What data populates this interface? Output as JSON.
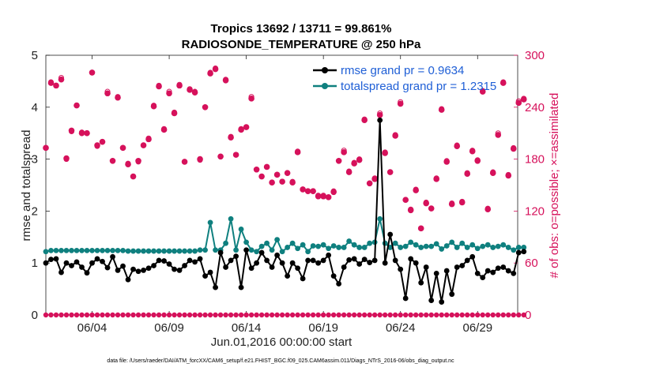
{
  "colors": {
    "rmse": "#000000",
    "spread": "#0f807f",
    "obs": "#d6115b",
    "legend_text": "#1f5fd6"
  },
  "chart_data": {
    "type": "line",
    "title_line1": "Tropics 13692 / 13711 = 99.861%",
    "title_line2": "RADIOSONDE_TEMPERATURE @ 250 hPa",
    "xlabel": "Jun.01,2016 00:00:00 start",
    "ylabel_left": "rmse and totalspread",
    "ylabel_right": "# of obs: o=possible; ×=assimilated",
    "xlim": [
      0,
      30.6
    ],
    "ylim_left": [
      0,
      5
    ],
    "ylim_right": [
      0,
      300
    ],
    "x_ticks": [
      3,
      8,
      13,
      18,
      23,
      28
    ],
    "x_tick_labels": [
      "06/04",
      "06/09",
      "06/14",
      "06/19",
      "06/24",
      "06/29"
    ],
    "y_left_ticks": [
      "0",
      "1",
      "2",
      "3",
      "4",
      "5"
    ],
    "y_right_ticks": [
      "0",
      "60",
      "120",
      "180",
      "240",
      "300"
    ],
    "footer": "data file: /Users/raeder/DAI/ATM_forcXX/CAM6_setup/f.e21.FHIST_BGC.f09_025.CAM6assim.011/Diags_NTrS_2016-06/obs_diag_output.nc",
    "legend": [
      {
        "label": "rmse grand pr = 0.9634",
        "series": "rmse"
      },
      {
        "label": "totalspread grand pr = 1.2315",
        "series": "spread"
      }
    ],
    "series": [
      {
        "name": "rmse",
        "axis": "left",
        "values": [
          1.0,
          1.07,
          1.08,
          0.82,
          1.0,
          0.95,
          1.02,
          0.92,
          0.81,
          1.0,
          1.08,
          1.03,
          0.91,
          1.12,
          0.86,
          0.94,
          0.68,
          0.88,
          0.84,
          0.86,
          0.9,
          0.95,
          1.05,
          1.04,
          0.98,
          0.88,
          0.86,
          0.95,
          1.05,
          1.02,
          1.08,
          0.75,
          0.82,
          0.53,
          1.2,
          0.92,
          1.05,
          1.13,
          0.53,
          1.25,
          0.9,
          1.0,
          1.2,
          1.05,
          0.92,
          1.15,
          1.0,
          0.75,
          1.0,
          0.9,
          0.7,
          1.05,
          1.05,
          1.0,
          1.05,
          1.15,
          0.75,
          0.6,
          0.92,
          1.06,
          1.08,
          0.98,
          1.07,
          1.01,
          1.05,
          3.75,
          1.0,
          1.55,
          1.05,
          0.88,
          0.32,
          1.08,
          1.0,
          0.62,
          0.92,
          0.28,
          0.8,
          0.25,
          0.85,
          0.4,
          0.92,
          0.95,
          1.05,
          1.12,
          0.8,
          0.72,
          0.85,
          0.82,
          0.9,
          0.92,
          0.85,
          0.8,
          1.2,
          1.22
        ]
      },
      {
        "name": "totalspread",
        "axis": "left",
        "values": [
          1.22,
          1.24,
          1.24,
          1.24,
          1.24,
          1.24,
          1.24,
          1.24,
          1.24,
          1.24,
          1.24,
          1.24,
          1.24,
          1.24,
          1.24,
          1.24,
          1.23,
          1.23,
          1.23,
          1.23,
          1.23,
          1.23,
          1.23,
          1.23,
          1.23,
          1.23,
          1.23,
          1.23,
          1.23,
          1.23,
          1.25,
          1.25,
          1.78,
          1.25,
          1.25,
          1.38,
          1.85,
          1.25,
          1.65,
          1.4,
          1.25,
          1.22,
          1.32,
          1.38,
          1.25,
          1.45,
          1.22,
          1.3,
          1.38,
          1.28,
          1.35,
          1.22,
          1.33,
          1.32,
          1.35,
          1.28,
          1.33,
          1.3,
          1.3,
          1.42,
          1.35,
          1.3,
          1.3,
          1.38,
          1.4,
          1.85,
          1.38,
          1.3,
          1.38,
          1.3,
          1.32,
          1.4,
          1.35,
          1.3,
          1.32,
          1.32,
          1.37,
          1.27,
          1.33,
          1.4,
          1.3,
          1.38,
          1.3,
          1.35,
          1.28,
          1.32,
          1.35,
          1.3,
          1.32,
          1.35,
          1.3,
          1.25,
          1.3,
          1.3
        ]
      },
      {
        "name": "obs_possible",
        "axis": "right",
        "values": [
          193,
          269,
          265,
          274,
          180,
          212,
          242,
          211,
          210,
          280,
          195,
          200,
          258,
          178,
          252,
          193,
          175,
          160,
          177,
          196,
          204,
          242,
          265,
          215,
          258,
          234,
          266,
          177,
          261,
          258,
          179,
          240,
          280,
          285,
          183,
          272,
          206,
          185,
          215,
          217,
          252,
          168,
          160,
          171,
          153,
          162,
          154,
          164,
          154,
          189,
          145,
          143,
          143,
          138,
          138,
          136,
          143,
          178,
          190,
          166,
          176,
          180,
          226,
          152,
          158,
          233,
          188,
          165,
          208,
          246,
          133,
          122,
          145,
          100,
          130,
          123,
          158,
          238,
          178,
          129,
          196,
          131,
          164,
          190,
          179,
          259,
          123,
          165,
          210,
          269,
          162,
          193,
          247,
          250
        ]
      },
      {
        "name": "obs_assimilated",
        "axis": "right",
        "values": [
          193,
          268,
          265,
          272,
          181,
          213,
          242,
          210,
          210,
          280,
          196,
          200,
          256,
          178,
          251,
          193,
          174,
          160,
          178,
          196,
          203,
          241,
          264,
          214,
          256,
          233,
          265,
          177,
          260,
          257,
          180,
          240,
          279,
          284,
          183,
          271,
          205,
          185,
          214,
          217,
          250,
          168,
          160,
          171,
          153,
          162,
          154,
          164,
          153,
          188,
          145,
          143,
          143,
          137,
          137,
          136,
          142,
          178,
          188,
          165,
          175,
          179,
          225,
          152,
          157,
          231,
          187,
          165,
          207,
          244,
          133,
          121,
          144,
          100,
          129,
          123,
          157,
          237,
          177,
          128,
          195,
          130,
          163,
          189,
          178,
          258,
          122,
          164,
          208,
          268,
          161,
          192,
          245,
          249
        ]
      },
      {
        "name": "obs_low",
        "axis": "right",
        "values": [
          0,
          0,
          0,
          0,
          0,
          0,
          0,
          0,
          0,
          0,
          0,
          0,
          0,
          0,
          0,
          0,
          0,
          0,
          0,
          0,
          0,
          0,
          0,
          0,
          0,
          0,
          0,
          0,
          0,
          0,
          0,
          0,
          0,
          0,
          0,
          0,
          0,
          0,
          0,
          0,
          0,
          0,
          0,
          0,
          0,
          0,
          0,
          0,
          0,
          0,
          0,
          0,
          0,
          0,
          0,
          0,
          0,
          0,
          0,
          0,
          0,
          0,
          0,
          0,
          0,
          0,
          0,
          0,
          0,
          0,
          0,
          0,
          0,
          0,
          0,
          0,
          0,
          0,
          0,
          0,
          0,
          0,
          0,
          0,
          0,
          0,
          0,
          0,
          0,
          0,
          0,
          0,
          0,
          0
        ]
      }
    ],
    "x_step": 0.3333
  }
}
